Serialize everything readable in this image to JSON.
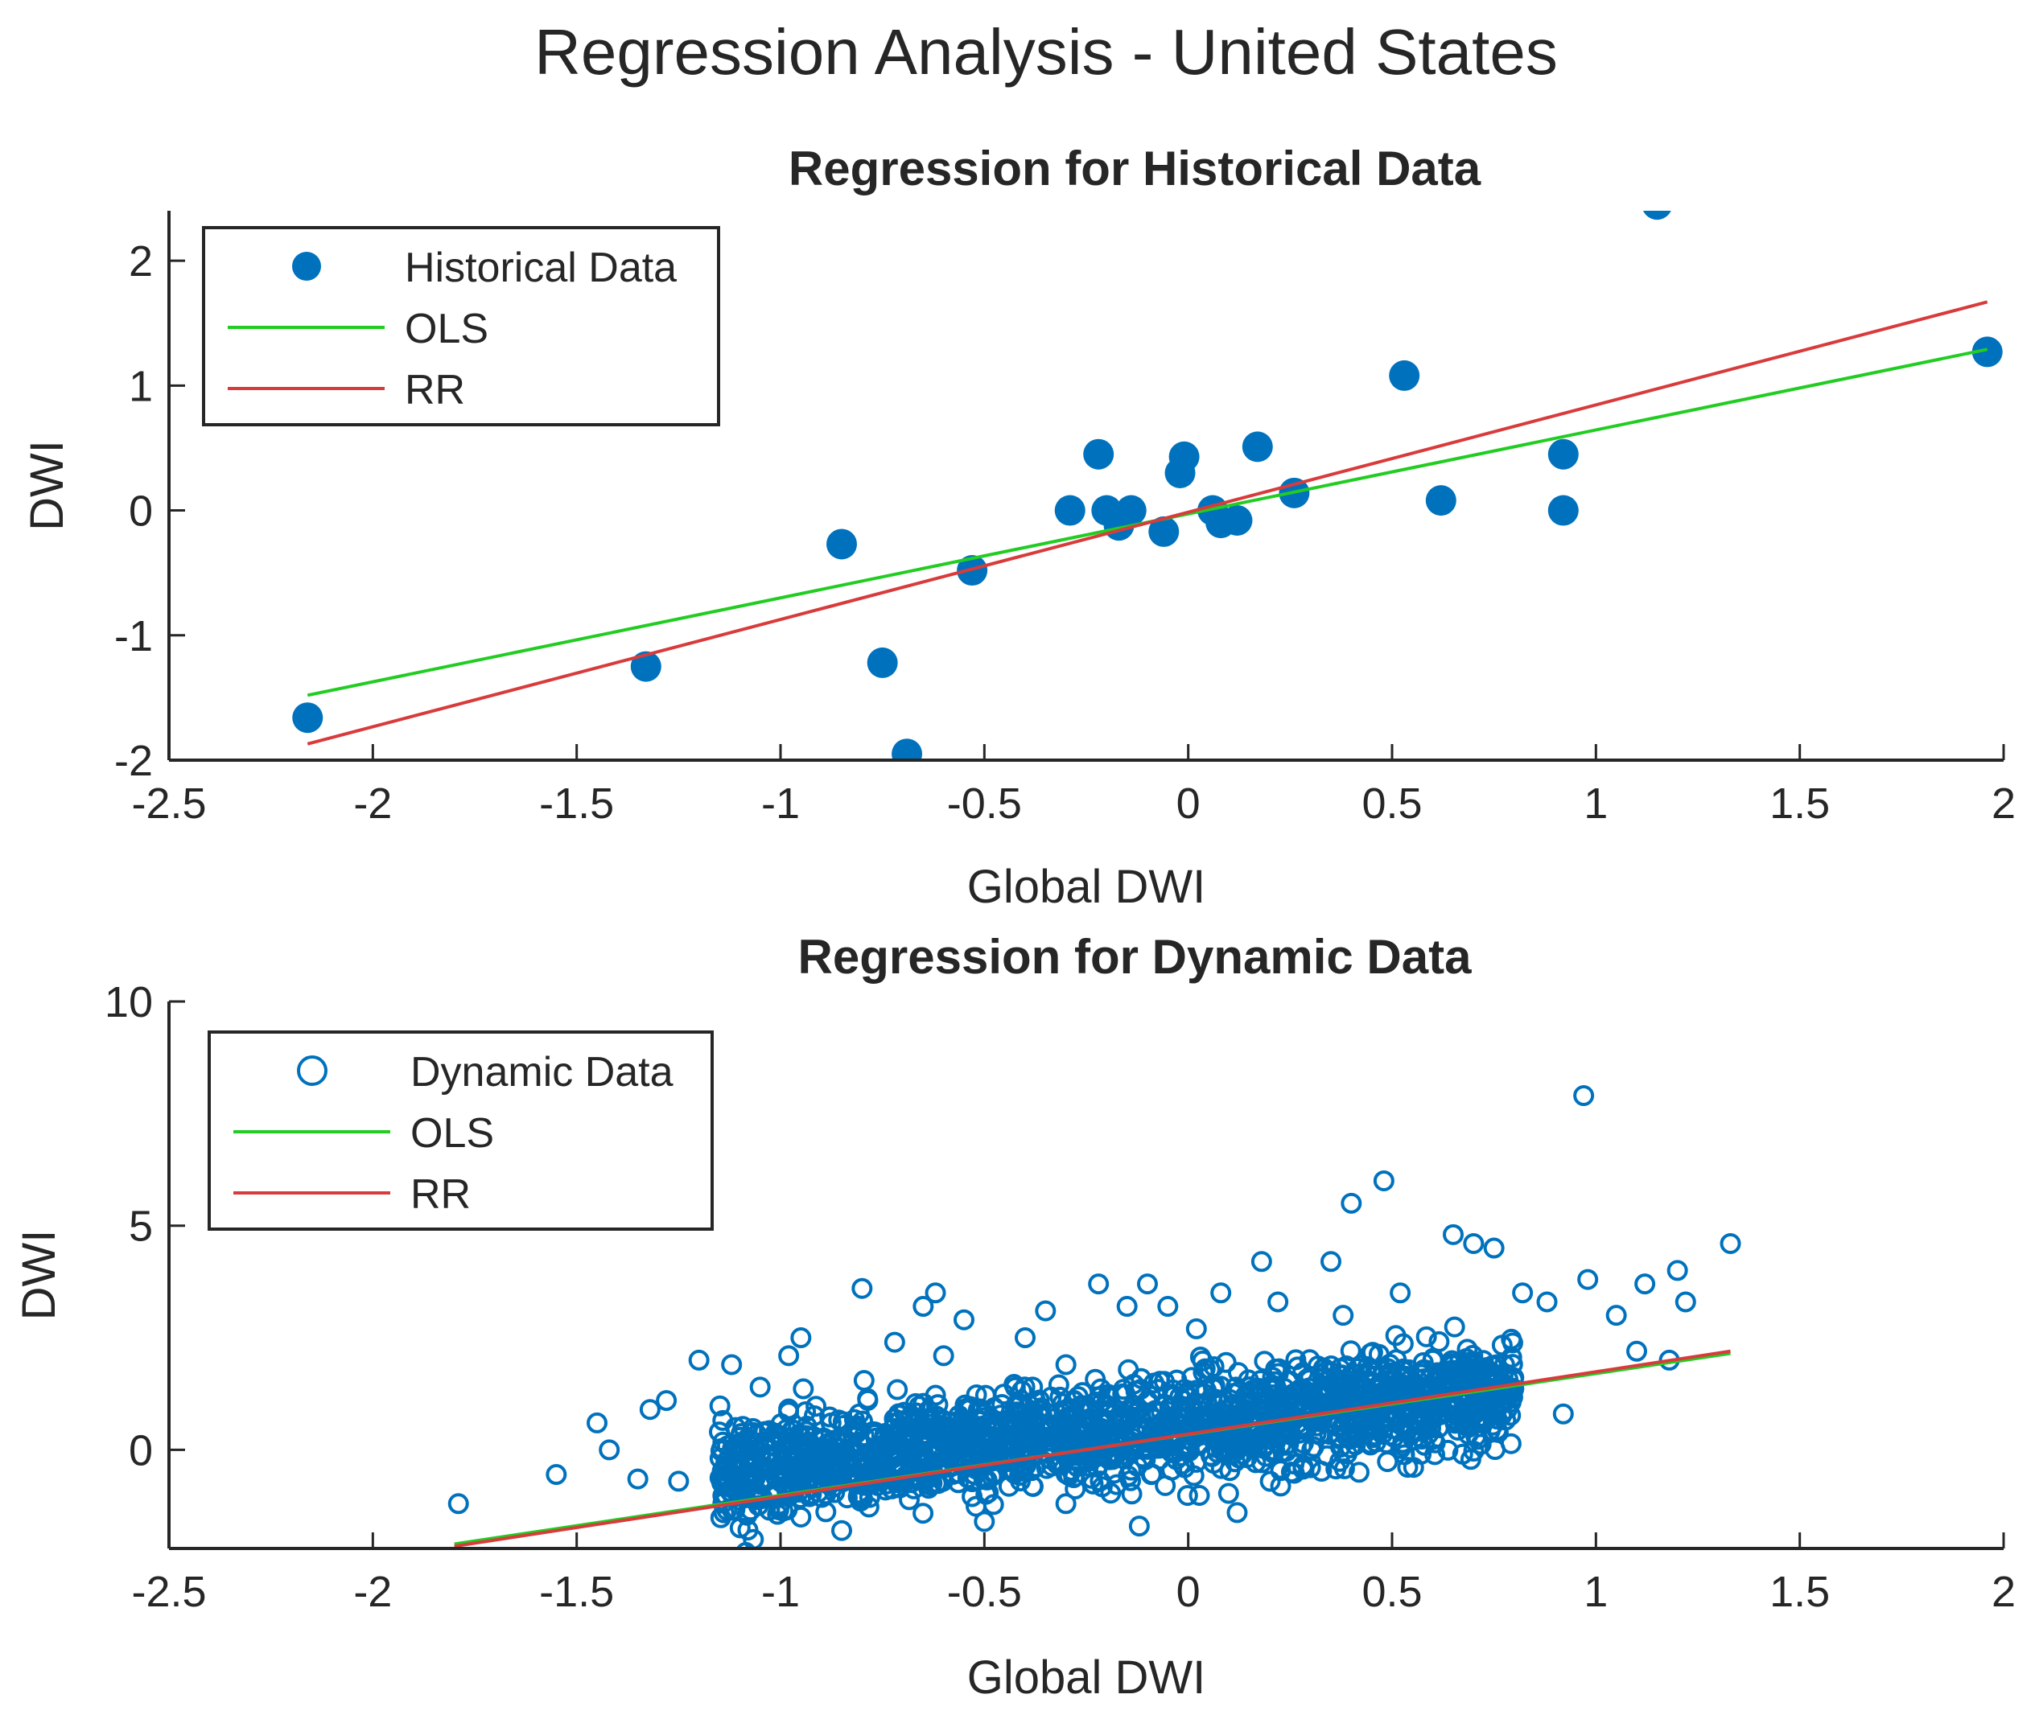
{
  "figure": {
    "title": "Regression Analysis - United States"
  },
  "colors": {
    "points": "#0072BD",
    "ols": "#22cc22",
    "rr": "#d83b3b",
    "axis": "#262626",
    "background": "#ffffff"
  },
  "chart_data": [
    {
      "type": "scatter",
      "title": "Regression for Historical Data",
      "xlabel": "Global DWI",
      "ylabel": "DWI",
      "xlim": [
        -2.5,
        2
      ],
      "ylim": [
        -2,
        2.4
      ],
      "xticks": [
        -2.5,
        -2,
        -1.5,
        -1,
        -0.5,
        0,
        0.5,
        1,
        1.5,
        2
      ],
      "xtick_labels": [
        "-2.5",
        "-2",
        "-1.5",
        "-1",
        "-0.5",
        "0",
        "0.5",
        "1",
        "1.5",
        "2"
      ],
      "yticks": [
        -2,
        -1,
        0,
        1,
        2
      ],
      "ytick_labels": [
        "-2",
        "-1",
        "0",
        "1",
        "2"
      ],
      "grid": false,
      "legend_position": "top-left",
      "legend": [
        "Historical Data",
        "OLS",
        "RR"
      ],
      "series": [
        {
          "name": "Historical Data",
          "kind": "scatter",
          "marker": "filled-circle",
          "points": [
            [
              -2.16,
              -1.66
            ],
            [
              -1.33,
              -1.25
            ],
            [
              -0.85,
              -0.27
            ],
            [
              -0.75,
              -1.22
            ],
            [
              -0.69,
              -1.95
            ],
            [
              -0.53,
              -0.48
            ],
            [
              -0.29,
              0.0
            ],
            [
              -0.22,
              0.45
            ],
            [
              -0.2,
              0.0
            ],
            [
              -0.17,
              -0.12
            ],
            [
              -0.14,
              0.0
            ],
            [
              -0.06,
              -0.17
            ],
            [
              -0.02,
              0.3
            ],
            [
              -0.01,
              0.43
            ],
            [
              0.06,
              0.0
            ],
            [
              0.08,
              -0.1
            ],
            [
              0.12,
              -0.08
            ],
            [
              0.17,
              0.51
            ],
            [
              0.26,
              0.14
            ],
            [
              0.53,
              1.08
            ],
            [
              0.62,
              0.08
            ],
            [
              0.92,
              0.45
            ],
            [
              0.92,
              0.0
            ],
            [
              1.15,
              2.45
            ],
            [
              1.96,
              1.27
            ]
          ]
        },
        {
          "name": "OLS",
          "kind": "line",
          "points": [
            [
              -2.16,
              -1.48
            ],
            [
              1.96,
              1.29
            ]
          ]
        },
        {
          "name": "RR",
          "kind": "line",
          "points": [
            [
              -2.16,
              -1.87
            ],
            [
              1.96,
              1.67
            ]
          ]
        }
      ]
    },
    {
      "type": "scatter",
      "title": "Regression for Dynamic Data",
      "xlabel": "Global DWI",
      "ylabel": "DWI",
      "xlim": [
        -2.5,
        2
      ],
      "ylim": [
        -2.2,
        10
      ],
      "xticks": [
        -2.5,
        -2,
        -1.5,
        -1,
        -0.5,
        0,
        0.5,
        1,
        1.5,
        2
      ],
      "xtick_labels": [
        "-2.5",
        "-2",
        "-1.5",
        "-1",
        "-0.5",
        "0",
        "0.5",
        "1",
        "1.5",
        "2"
      ],
      "yticks": [
        0,
        5,
        10
      ],
      "ytick_labels": [
        "0",
        "5",
        "10"
      ],
      "grid": false,
      "legend_position": "top-left",
      "legend": [
        "Dynamic Data",
        "OLS",
        "RR"
      ],
      "series": [
        {
          "name": "Dynamic Data",
          "kind": "scatter",
          "marker": "open-circle",
          "points": [
            [
              -1.79,
              -1.2
            ],
            [
              -1.55,
              -0.55
            ],
            [
              -1.45,
              0.6
            ],
            [
              -1.42,
              0.0
            ],
            [
              -1.35,
              -0.65
            ],
            [
              -1.32,
              0.9
            ],
            [
              -1.25,
              -0.7
            ],
            [
              -1.2,
              2.0
            ],
            [
              -1.12,
              1.9
            ],
            [
              -1.28,
              1.1
            ],
            [
              -1.15,
              0.4
            ],
            [
              -1.05,
              1.4
            ],
            [
              -0.98,
              2.1
            ],
            [
              -0.95,
              -1.5
            ],
            [
              -0.85,
              -1.8
            ],
            [
              -0.8,
              3.6
            ],
            [
              -0.72,
              2.4
            ],
            [
              -0.65,
              3.2
            ],
            [
              -0.62,
              3.5
            ],
            [
              -0.6,
              2.1
            ],
            [
              -0.55,
              2.9
            ],
            [
              -0.5,
              -1.6
            ],
            [
              -0.4,
              2.5
            ],
            [
              -0.35,
              3.1
            ],
            [
              -0.3,
              1.9
            ],
            [
              -0.22,
              3.7
            ],
            [
              -0.15,
              3.2
            ],
            [
              -0.1,
              3.7
            ],
            [
              -0.12,
              -1.7
            ],
            [
              -0.05,
              3.2
            ],
            [
              0.02,
              2.7
            ],
            [
              0.08,
              3.5
            ],
            [
              0.12,
              -1.4
            ],
            [
              0.18,
              4.2
            ],
            [
              0.22,
              3.3
            ],
            [
              0.35,
              4.2
            ],
            [
              0.38,
              3.0
            ],
            [
              0.4,
              5.5
            ],
            [
              0.48,
              6.0
            ],
            [
              0.52,
              3.5
            ],
            [
              0.6,
              2.0
            ],
            [
              0.65,
              4.8
            ],
            [
              0.7,
              4.6
            ],
            [
              0.75,
              4.5
            ],
            [
              0.72,
              0.9
            ],
            [
              0.78,
              1.1
            ],
            [
              0.82,
              3.5
            ],
            [
              0.88,
              3.3
            ],
            [
              0.92,
              0.8
            ],
            [
              0.97,
              7.9
            ],
            [
              0.98,
              3.8
            ],
            [
              1.05,
              3.0
            ],
            [
              1.1,
              2.2
            ],
            [
              1.12,
              3.7
            ],
            [
              1.18,
              2.0
            ],
            [
              1.2,
              4.0
            ],
            [
              1.22,
              3.3
            ],
            [
              1.33,
              4.6
            ],
            [
              -0.3,
              -1.2
            ],
            [
              0.3,
              -0.4
            ],
            [
              -0.95,
              2.5
            ],
            [
              0.58,
              0.1
            ]
          ],
          "cloud": {
            "count": 1800,
            "x_range": [
              -1.15,
              0.8
            ],
            "trend": [
              0.93,
              0.55
            ],
            "noise_sd": 0.55
          }
        },
        {
          "name": "OLS",
          "kind": "line",
          "points": [
            [
              -1.8,
              -2.1
            ],
            [
              1.33,
              2.15
            ]
          ]
        },
        {
          "name": "RR",
          "kind": "line",
          "points": [
            [
              -1.8,
              -2.15
            ],
            [
              1.33,
              2.2
            ]
          ]
        }
      ]
    }
  ]
}
